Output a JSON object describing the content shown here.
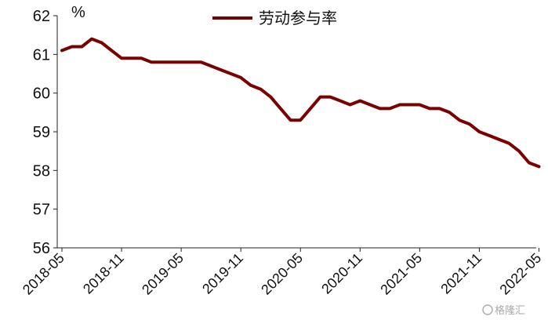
{
  "chart_data": {
    "type": "line",
    "ylabel": "%",
    "ylim": [
      56,
      62
    ],
    "yticks": [
      "56",
      "57",
      "58",
      "59",
      "60",
      "61",
      "62"
    ],
    "xticks": [
      "2018-05",
      "2018-11",
      "2019-05",
      "2019-11",
      "2020-05",
      "2020-11",
      "2021-05",
      "2021-11",
      "2022-05"
    ],
    "legend_position": "top",
    "grid": false,
    "series": [
      {
        "name": "劳动参与率",
        "color": "#7b0000",
        "x": [
          "2018-05",
          "2018-06",
          "2018-07",
          "2018-08",
          "2018-09",
          "2018-10",
          "2018-11",
          "2018-12",
          "2019-01",
          "2019-02",
          "2019-03",
          "2019-04",
          "2019-05",
          "2019-06",
          "2019-07",
          "2019-08",
          "2019-09",
          "2019-10",
          "2019-11",
          "2019-12",
          "2020-01",
          "2020-02",
          "2020-03",
          "2020-04",
          "2020-05",
          "2020-06",
          "2020-07",
          "2020-08",
          "2020-09",
          "2020-10",
          "2020-11",
          "2020-12",
          "2021-01",
          "2021-02",
          "2021-03",
          "2021-04",
          "2021-05",
          "2021-06",
          "2021-07",
          "2021-08",
          "2021-09",
          "2021-10",
          "2021-11",
          "2021-12",
          "2022-01",
          "2022-02",
          "2022-03",
          "2022-04",
          "2022-05"
        ],
        "values": [
          61.1,
          61.2,
          61.2,
          61.4,
          61.3,
          61.1,
          60.9,
          60.9,
          60.9,
          60.8,
          60.8,
          60.8,
          60.8,
          60.8,
          60.8,
          60.7,
          60.6,
          60.5,
          60.4,
          60.2,
          60.1,
          59.9,
          59.6,
          59.3,
          59.3,
          59.6,
          59.9,
          59.9,
          59.8,
          59.7,
          59.8,
          59.7,
          59.6,
          59.6,
          59.7,
          59.7,
          59.7,
          59.6,
          59.6,
          59.5,
          59.3,
          59.2,
          59.0,
          58.9,
          58.8,
          58.7,
          58.5,
          58.2,
          58.1
        ]
      }
    ]
  },
  "watermark": {
    "text": "格隆汇"
  }
}
